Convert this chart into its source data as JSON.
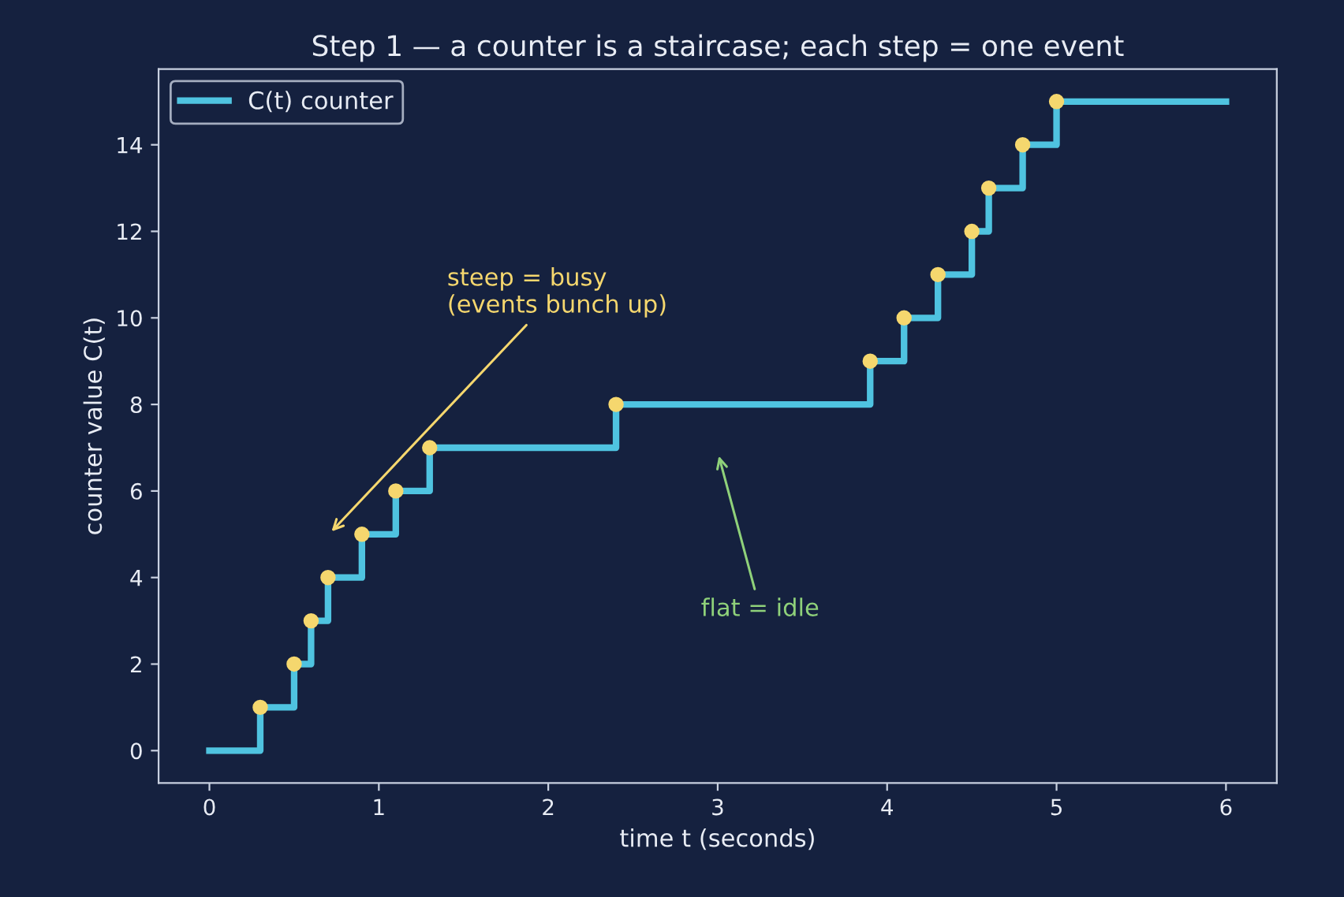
{
  "chart_data": {
    "type": "step",
    "title": "Step 1 — a counter is a staircase; each step = one event",
    "xlabel": "time t (seconds)",
    "ylabel": "counter value C(t)",
    "series": [
      {
        "name": "C(t) counter",
        "color": "#4fc3e0",
        "x": [
          0,
          0.3,
          0.5,
          0.6,
          0.7,
          0.9,
          1.1,
          1.3,
          2.4,
          3.9,
          4.1,
          4.3,
          4.5,
          4.6,
          4.8,
          5.0,
          6
        ],
        "values": [
          0,
          1,
          2,
          3,
          4,
          5,
          6,
          7,
          8,
          9,
          10,
          11,
          12,
          13,
          14,
          15,
          15
        ]
      },
      {
        "type": "scatter",
        "color": "#f5d76e",
        "marker": "circle",
        "x": [
          0.3,
          0.5,
          0.6,
          0.7,
          0.9,
          1.1,
          1.3,
          2.4,
          3.9,
          4.1,
          4.3,
          4.5,
          4.6,
          4.8,
          5.0
        ],
        "values": [
          1,
          2,
          3,
          4,
          5,
          6,
          7,
          8,
          9,
          10,
          11,
          12,
          13,
          14,
          15
        ]
      }
    ],
    "annotations": [
      "steep = busy\n(events bunch up)",
      "flat = idle"
    ],
    "xlim": [
      -0.3,
      6.3
    ],
    "xticks": [
      0,
      1,
      2,
      3,
      4,
      5,
      6
    ],
    "ylim": [
      -0.75,
      15.75
    ],
    "yticks": [
      0,
      2,
      4,
      6,
      8,
      10,
      12,
      14
    ],
    "grid": false,
    "legend": "top left"
  }
}
